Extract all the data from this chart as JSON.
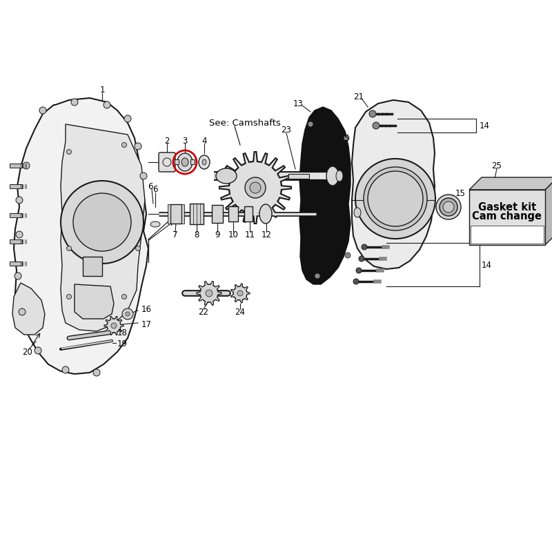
{
  "bg_color": "#ffffff",
  "dc": "#1a1a1a",
  "red": "#cc0000",
  "gasket_text_line1": "Gasket kit",
  "gasket_text_line2": "Cam change",
  "see_camshafts": "See: Camshafts",
  "lw_main": 1.5,
  "lw_thin": 1.0,
  "lw_label": 0.8,
  "label_fs": 8.5
}
